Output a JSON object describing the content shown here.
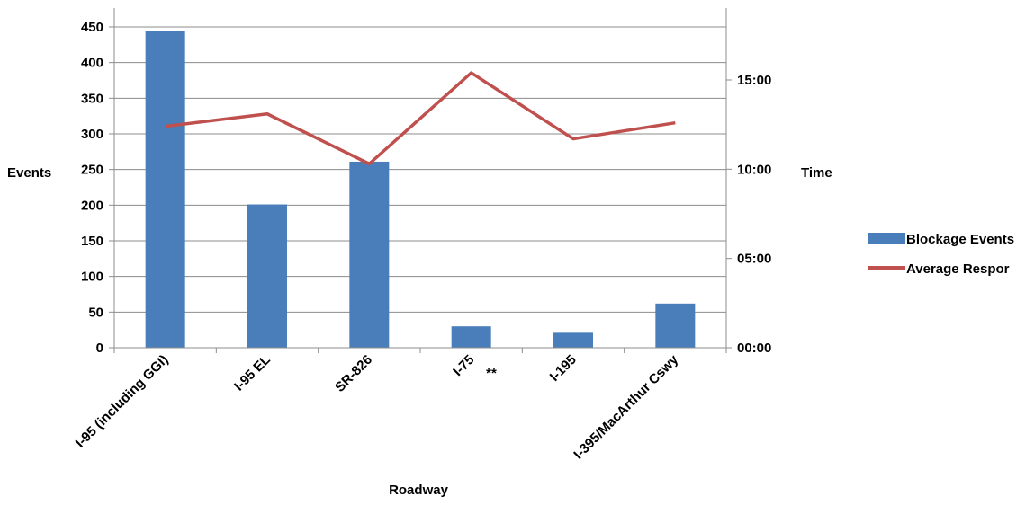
{
  "chart_data": {
    "type": "bar",
    "xlabel": "Roadway",
    "ylabel": "Events",
    "y2label": "Time",
    "categories": [
      "I-95 (including GGI)",
      "I-95 EL",
      "SR-826",
      "I-75",
      "I-195",
      "I-395/MacArthur Cswy"
    ],
    "category_annotation": {
      "category": "I-75",
      "text": "**"
    },
    "ylim": [
      0,
      450
    ],
    "yticks": [
      0,
      50,
      100,
      150,
      200,
      250,
      300,
      350,
      400,
      450
    ],
    "y2lim_minutes": [
      0,
      18
    ],
    "y2ticks": [
      "00:00",
      "05:00",
      "10:00",
      "15:00"
    ],
    "y2ticks_minutes": [
      0,
      5,
      10,
      15
    ],
    "grid": true,
    "legend_position": "right",
    "series": [
      {
        "name": "Blockage Events",
        "type": "bar",
        "axis": "left",
        "color": "#4a7ebb",
        "values": [
          444,
          201,
          261,
          30,
          21,
          62
        ]
      },
      {
        "name": "Average Respor",
        "type": "line",
        "axis": "right",
        "color": "#c0504d",
        "values_minutes": [
          12.4,
          13.1,
          10.3,
          15.4,
          11.7,
          12.6
        ]
      }
    ]
  }
}
